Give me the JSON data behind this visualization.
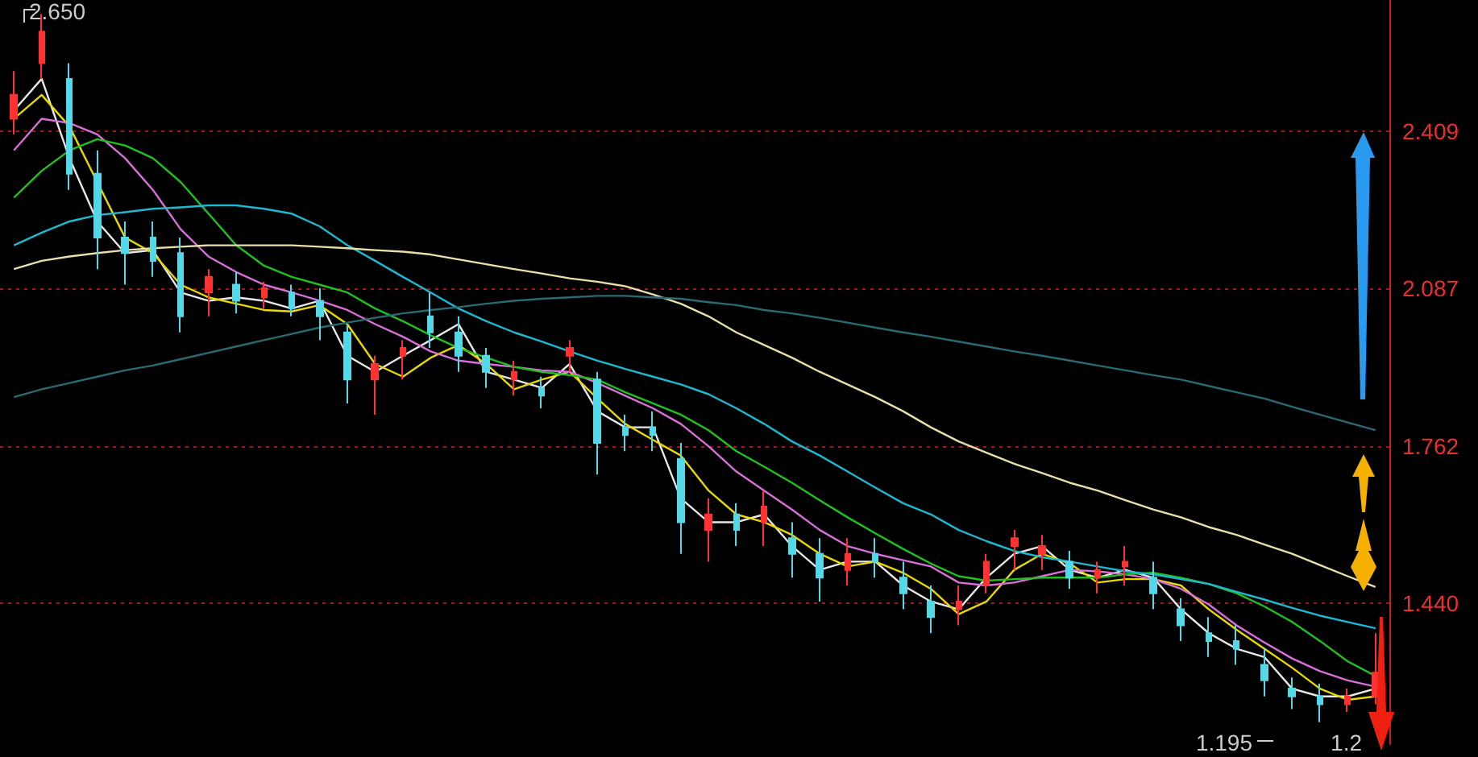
{
  "chart_data": {
    "type": "candlestick",
    "categories": [
      null,
      null,
      null,
      null,
      null,
      null,
      null,
      null,
      null,
      null,
      null,
      null,
      null,
      null,
      null,
      null,
      null,
      null,
      null,
      null,
      null,
      null,
      null,
      null,
      null,
      null,
      null,
      null,
      null,
      null,
      null,
      null,
      null,
      null,
      null,
      null,
      null,
      null,
      null,
      null,
      null,
      null,
      null,
      null,
      null,
      null,
      null,
      null,
      null,
      null
    ],
    "ohlc": [
      [
        2.435,
        2.533,
        2.403,
        2.484
      ],
      [
        2.549,
        2.65,
        2.517,
        2.614
      ],
      [
        2.517,
        2.549,
        2.289,
        2.322
      ],
      [
        2.322,
        2.37,
        2.126,
        2.191
      ],
      [
        2.191,
        2.224,
        2.094,
        2.159
      ],
      [
        2.191,
        2.224,
        2.11,
        2.143
      ],
      [
        2.159,
        2.191,
        1.996,
        2.029
      ],
      [
        2.078,
        2.126,
        2.029,
        2.11
      ],
      [
        2.094,
        2.12,
        2.035,
        2.061
      ],
      [
        2.068,
        2.1,
        2.045,
        2.087
      ],
      [
        2.078,
        2.094,
        2.029,
        2.045
      ],
      [
        2.061,
        2.087,
        1.98,
        2.029
      ],
      [
        1.996,
        2.013,
        1.85,
        1.899
      ],
      [
        1.899,
        1.948,
        1.827,
        1.931
      ],
      [
        1.948,
        1.98,
        1.899,
        1.964
      ],
      [
        2.029,
        2.078,
        1.964,
        1.996
      ],
      [
        1.996,
        2.029,
        1.915,
        1.948
      ],
      [
        1.948,
        1.964,
        1.882,
        1.915
      ],
      [
        1.899,
        1.938,
        1.866,
        1.915
      ],
      [
        1.882,
        1.905,
        1.84,
        1.866
      ],
      [
        1.948,
        1.98,
        1.915,
        1.964
      ],
      [
        1.899,
        1.915,
        1.704,
        1.769
      ],
      [
        1.801,
        1.827,
        1.752,
        1.785
      ],
      [
        1.801,
        1.834,
        1.752,
        1.785
      ],
      [
        1.736,
        1.769,
        1.541,
        1.606
      ],
      [
        1.59,
        1.655,
        1.525,
        1.622
      ],
      [
        1.622,
        1.645,
        1.557,
        1.59
      ],
      [
        1.606,
        1.671,
        1.557,
        1.638
      ],
      [
        1.573,
        1.606,
        1.492,
        1.541
      ],
      [
        1.541,
        1.573,
        1.443,
        1.492
      ],
      [
        1.508,
        1.573,
        1.476,
        1.541
      ],
      [
        1.541,
        1.573,
        1.492,
        1.525
      ],
      [
        1.492,
        1.525,
        1.427,
        1.46
      ],
      [
        1.443,
        1.476,
        1.378,
        1.411
      ],
      [
        1.427,
        1.476,
        1.394,
        1.443
      ],
      [
        1.476,
        1.541,
        1.46,
        1.525
      ],
      [
        1.557,
        1.59,
        1.508,
        1.573
      ],
      [
        1.541,
        1.58,
        1.508,
        1.557
      ],
      [
        1.525,
        1.547,
        1.469,
        1.492
      ],
      [
        1.492,
        1.525,
        1.46,
        1.508
      ],
      [
        1.515,
        1.557,
        1.476,
        1.525
      ],
      [
        1.492,
        1.525,
        1.427,
        1.46
      ],
      [
        1.427,
        1.45,
        1.362,
        1.394
      ],
      [
        1.378,
        1.411,
        1.329,
        1.362
      ],
      [
        1.362,
        1.394,
        1.313,
        1.346
      ],
      [
        1.313,
        1.346,
        1.248,
        1.281
      ],
      [
        1.264,
        1.287,
        1.222,
        1.248
      ],
      [
        1.248,
        1.274,
        1.195,
        1.232
      ],
      [
        1.232,
        1.264,
        1.216,
        1.248
      ],
      [
        1.248,
        1.378,
        1.232,
        1.297
      ]
    ],
    "colors": [
      "#ff3232",
      "#ff3232",
      "#54d8e8",
      "#54d8e8",
      "#54d8e8",
      "#54d8e8",
      "#54d8e8",
      "#ff3232",
      "#54d8e8",
      "#ff3232",
      "#54d8e8",
      "#54d8e8",
      "#54d8e8",
      "#ff3232",
      "#ff3232",
      "#54d8e8",
      "#54d8e8",
      "#54d8e8",
      "#ff3232",
      "#54d8e8",
      "#ff3232",
      "#54d8e8",
      "#54d8e8",
      "#54d8e8",
      "#54d8e8",
      "#ff3232",
      "#54d8e8",
      "#ff3232",
      "#54d8e8",
      "#54d8e8",
      "#ff3232",
      "#54d8e8",
      "#54d8e8",
      "#54d8e8",
      "#ff3232",
      "#ff3232",
      "#ff3232",
      "#ff3232",
      "#54d8e8",
      "#ff3232",
      "#ff3232",
      "#54d8e8",
      "#54d8e8",
      "#54d8e8",
      "#54d8e8",
      "#54d8e8",
      "#54d8e8",
      "#54d8e8",
      "#ff3232",
      "#ff3232"
    ],
    "series": [
      {
        "type": "line",
        "color": "#e8e8e8",
        "values": [
          2.452,
          2.517,
          2.354,
          2.224,
          2.159,
          2.165,
          2.078,
          2.061,
          2.068,
          2.061,
          2.045,
          2.061,
          1.948,
          1.915,
          1.948,
          1.98,
          2.013,
          1.915,
          1.899,
          1.882,
          1.931,
          1.834,
          1.801,
          1.801,
          1.655,
          1.606,
          1.606,
          1.622,
          1.557,
          1.508,
          1.525,
          1.525,
          1.476,
          1.443,
          1.427,
          1.492,
          1.541,
          1.557,
          1.508,
          1.492,
          1.508,
          1.492,
          1.427,
          1.378,
          1.346,
          1.329,
          1.264,
          1.248,
          1.248,
          1.264
        ]
      },
      {
        "type": "line",
        "color": "#e8d800",
        "values": [
          2.435,
          2.484,
          2.419,
          2.305,
          2.191,
          2.159,
          2.094,
          2.068,
          2.055,
          2.042,
          2.039,
          2.052,
          2.013,
          1.931,
          1.905,
          1.944,
          1.97,
          1.931,
          1.879,
          1.899,
          1.915,
          1.86,
          1.808,
          1.775,
          1.743,
          1.671,
          1.622,
          1.606,
          1.58,
          1.541,
          1.515,
          1.525,
          1.502,
          1.469,
          1.417,
          1.443,
          1.508,
          1.541,
          1.521,
          1.482,
          1.489,
          1.489,
          1.476,
          1.427,
          1.385,
          1.346,
          1.307,
          1.264,
          1.241,
          1.248
        ]
      },
      {
        "type": "line",
        "color": "#d870d8",
        "values": [
          2.37,
          2.435,
          2.426,
          2.403,
          2.354,
          2.289,
          2.208,
          2.152,
          2.12,
          2.094,
          2.078,
          2.061,
          2.042,
          2.013,
          1.987,
          1.957,
          1.938,
          1.931,
          1.925,
          1.918,
          1.915,
          1.892,
          1.866,
          1.84,
          1.808,
          1.762,
          1.71,
          1.671,
          1.632,
          1.59,
          1.557,
          1.541,
          1.528,
          1.515,
          1.482,
          1.476,
          1.482,
          1.495,
          1.508,
          1.505,
          1.499,
          1.489,
          1.469,
          1.437,
          1.394,
          1.359,
          1.326,
          1.3,
          1.281,
          1.268
        ]
      },
      {
        "type": "line",
        "color": "#20c020",
        "values": [
          2.273,
          2.328,
          2.37,
          2.393,
          2.38,
          2.354,
          2.305,
          2.24,
          2.175,
          2.133,
          2.11,
          2.094,
          2.078,
          2.045,
          2.019,
          1.99,
          1.964,
          1.944,
          1.925,
          1.915,
          1.908,
          1.899,
          1.873,
          1.85,
          1.827,
          1.795,
          1.752,
          1.72,
          1.687,
          1.651,
          1.616,
          1.583,
          1.551,
          1.521,
          1.495,
          1.486,
          1.489,
          1.492,
          1.492,
          1.492,
          1.499,
          1.502,
          1.492,
          1.479,
          1.46,
          1.433,
          1.401,
          1.362,
          1.32,
          1.29
        ]
      },
      {
        "type": "line",
        "color": "#20b8d0",
        "values": [
          2.175,
          2.201,
          2.224,
          2.237,
          2.243,
          2.25,
          2.253,
          2.257,
          2.257,
          2.25,
          2.24,
          2.214,
          2.175,
          2.143,
          2.11,
          2.078,
          2.045,
          2.019,
          1.996,
          1.977,
          1.957,
          1.938,
          1.921,
          1.905,
          1.889,
          1.869,
          1.84,
          1.808,
          1.772,
          1.743,
          1.71,
          1.677,
          1.645,
          1.622,
          1.59,
          1.567,
          1.547,
          1.534,
          1.525,
          1.515,
          1.505,
          1.499,
          1.489,
          1.479,
          1.463,
          1.447,
          1.43,
          1.414,
          1.401,
          1.388
        ]
      },
      {
        "type": "line",
        "color": "#e8e0a8",
        "values": [
          2.126,
          2.143,
          2.152,
          2.159,
          2.165,
          2.169,
          2.172,
          2.175,
          2.175,
          2.175,
          2.175,
          2.172,
          2.169,
          2.165,
          2.162,
          2.156,
          2.146,
          2.136,
          2.126,
          2.117,
          2.107,
          2.1,
          2.091,
          2.074,
          2.055,
          2.029,
          1.996,
          1.97,
          1.944,
          1.915,
          1.889,
          1.863,
          1.834,
          1.801,
          1.772,
          1.749,
          1.726,
          1.707,
          1.687,
          1.671,
          1.651,
          1.632,
          1.616,
          1.596,
          1.58,
          1.56,
          1.541,
          1.518,
          1.495,
          1.473
        ]
      },
      {
        "type": "line",
        "color": "#2a6a70",
        "values": [
          1.863,
          1.879,
          1.892,
          1.905,
          1.918,
          1.928,
          1.941,
          1.954,
          1.967,
          1.98,
          1.993,
          2.006,
          2.016,
          2.026,
          2.035,
          2.042,
          2.048,
          2.055,
          2.061,
          2.065,
          2.068,
          2.071,
          2.071,
          2.068,
          2.065,
          2.058,
          2.052,
          2.042,
          2.035,
          2.026,
          2.016,
          2.006,
          1.996,
          1.987,
          1.977,
          1.967,
          1.957,
          1.948,
          1.938,
          1.928,
          1.918,
          1.908,
          1.899,
          1.886,
          1.873,
          1.86,
          1.843,
          1.827,
          1.811,
          1.795
        ]
      }
    ],
    "ylim": [
      1.15,
      2.679
    ],
    "yticks": [
      {
        "value": 1.44,
        "label": "1.440"
      },
      1.762,
      2.087,
      2.409
    ],
    "grid": "y",
    "marker": "none",
    "line_style": "solid",
    "annotations": [
      "2.650",
      "1.195",
      "1.2"
    ]
  }
}
